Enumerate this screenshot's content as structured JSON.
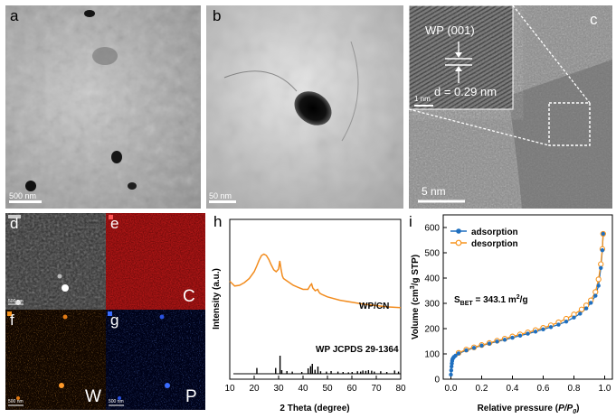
{
  "figure": {
    "panel_a": {
      "label": "a",
      "scale_bar": "500 nm"
    },
    "panel_b": {
      "label": "b",
      "scale_bar": "50 nm"
    },
    "panel_c": {
      "label": "c",
      "inset_plane": "WP (001)",
      "d_spacing": "d = 0.29 nm",
      "inset_scale": "1 nm",
      "scale_bar": "5 nm"
    },
    "panel_d": {
      "label": "d",
      "scale_bar": "500 nm"
    },
    "panel_e": {
      "label": "e",
      "element": "C"
    },
    "panel_f": {
      "label": "f",
      "element": "W",
      "scale_bar": "500 nm"
    },
    "panel_g": {
      "label": "g",
      "element": "P",
      "scale_bar": "500 nm"
    },
    "colors": {
      "xrd": "#f28c1e",
      "ads": "#1f6fbf",
      "des": "#f7941d",
      "edx_c": "#b81818",
      "edx_w": "#c45a0a",
      "edx_p": "#1e3fd1"
    }
  },
  "chart_data": [
    {
      "panel": "h",
      "type": "line",
      "title": "",
      "xlabel": "2 Theta (degree)",
      "ylabel": "Intensity (a.u.)",
      "xlim": [
        10,
        80
      ],
      "xticks": [
        10,
        20,
        30,
        40,
        50,
        60,
        70,
        80
      ],
      "series": [
        {
          "name": "WP/CN",
          "x": [
            10,
            12,
            14,
            16,
            18,
            20,
            21,
            22,
            23,
            24,
            25,
            26,
            27,
            28,
            29,
            30,
            30.5,
            31,
            31.5,
            32,
            34,
            36,
            38,
            40,
            42,
            43,
            43.5,
            44,
            45,
            46,
            46.5,
            47,
            48,
            50,
            55,
            60,
            65,
            70,
            75,
            80
          ],
          "y": [
            0.62,
            0.55,
            0.56,
            0.6,
            0.66,
            0.76,
            0.84,
            0.93,
            1.0,
            1.02,
            1.0,
            0.94,
            0.86,
            0.79,
            0.76,
            0.8,
            0.92,
            0.8,
            0.7,
            0.66,
            0.61,
            0.56,
            0.53,
            0.5,
            0.5,
            0.56,
            0.58,
            0.52,
            0.48,
            0.5,
            0.46,
            0.44,
            0.42,
            0.39,
            0.34,
            0.31,
            0.28,
            0.26,
            0.24,
            0.23
          ]
        },
        {
          "name": "WP JCPDS 29-1364",
          "type": "stick",
          "x": [
            21.1,
            28.8,
            30.6,
            31.3,
            33.4,
            35.6,
            39.5,
            42.1,
            43.1,
            43.8,
            44.9,
            46.1,
            47.2,
            49.6,
            51.5,
            54.3,
            56.4,
            58.6,
            60.1,
            62.3,
            63.6,
            64.5,
            65.7,
            66.8,
            68.1,
            69.2,
            71.8,
            74.3,
            77.5,
            79.1
          ],
          "y": [
            0.32,
            0.32,
            1.0,
            0.2,
            0.15,
            0.12,
            0.1,
            0.3,
            0.42,
            0.55,
            0.22,
            0.4,
            0.14,
            0.12,
            0.15,
            0.12,
            0.1,
            0.08,
            0.1,
            0.14,
            0.12,
            0.18,
            0.16,
            0.2,
            0.17,
            0.12,
            0.14,
            0.1,
            0.18,
            0.12
          ]
        }
      ],
      "series_labels": [
        "WP/CN",
        "WP JCPDS 29-1364"
      ]
    },
    {
      "panel": "i",
      "type": "scatter",
      "title": "",
      "xlabel_prefix": "Relative pressure (",
      "xlabel_italic": "P/P",
      "xlabel_sub": "0",
      "xlabel_suffix": ")",
      "ylabel_pre": "Volume (cm",
      "ylabel_sup": "3",
      "ylabel_post": "/g STP)",
      "xlim": [
        -0.05,
        1.05
      ],
      "ylim": [
        0,
        650
      ],
      "xticks": [
        0.0,
        0.2,
        0.4,
        0.6,
        0.8,
        1.0
      ],
      "xtick_labels": [
        "0.0",
        "0.2",
        "0.4",
        "0.6",
        "0.8",
        "1.0"
      ],
      "yticks": [
        0,
        100,
        200,
        300,
        400,
        500,
        600
      ],
      "annotation_pre": "S",
      "annotation_sub": "BET",
      "annotation_post": " = 343.1 m",
      "annotation_sup": "2",
      "annotation_end": "/g",
      "series": [
        {
          "name": "adsorption",
          "x": [
            0.0,
            0.002,
            0.004,
            0.006,
            0.008,
            0.01,
            0.015,
            0.02,
            0.03,
            0.05,
            0.1,
            0.15,
            0.2,
            0.25,
            0.3,
            0.35,
            0.4,
            0.45,
            0.5,
            0.55,
            0.6,
            0.65,
            0.7,
            0.75,
            0.8,
            0.84,
            0.88,
            0.91,
            0.94,
            0.96,
            0.975,
            0.985,
            0.99
          ],
          "y": [
            18,
            35,
            50,
            62,
            72,
            79,
            84,
            88,
            93,
            102,
            114,
            124,
            133,
            141,
            149,
            156,
            164,
            172,
            180,
            188,
            197,
            206,
            216,
            228,
            244,
            259,
            280,
            302,
            330,
            370,
            440,
            510,
            575
          ]
        },
        {
          "name": "desorption",
          "x": [
            0.99,
            0.985,
            0.975,
            0.96,
            0.94,
            0.91,
            0.88,
            0.85,
            0.8,
            0.75,
            0.7,
            0.65,
            0.6,
            0.55,
            0.5,
            0.45,
            0.4,
            0.35,
            0.3,
            0.25,
            0.2,
            0.15,
            0.1,
            0.05
          ],
          "y": [
            575,
            515,
            455,
            395,
            345,
            312,
            292,
            276,
            256,
            239,
            225,
            213,
            203,
            194,
            185,
            177,
            169,
            160,
            152,
            143,
            135,
            126,
            117,
            104
          ]
        }
      ],
      "legend": [
        "adsorption",
        "desorption"
      ]
    }
  ]
}
